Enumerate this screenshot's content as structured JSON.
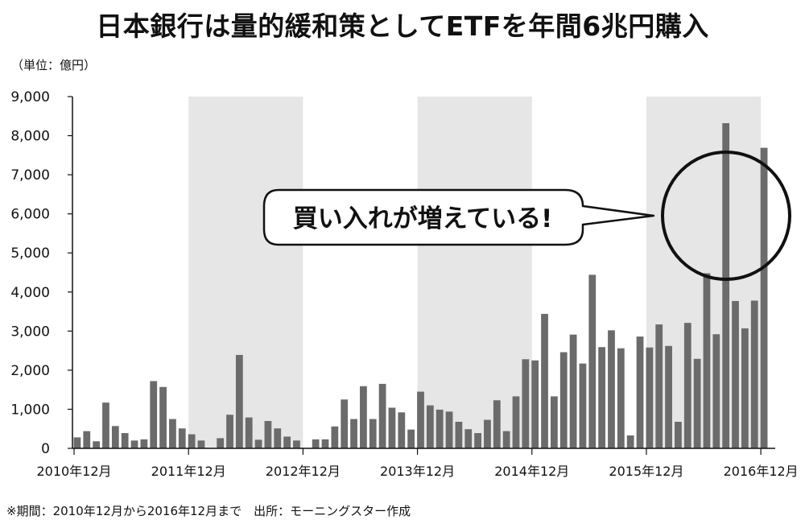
{
  "title": "日本銀行は量的緩和策としてETFを年間6兆円購入",
  "unit_label": "（単位：億円）",
  "footnote": "※期間：2010年12月から2016年12月まで　出所：モーニングスター作成",
  "callout": "買い入れが増えている!",
  "colors": {
    "bar": "#6b6b6b",
    "shade": "#e6e6e6",
    "axis": "#111111"
  },
  "chart_data": {
    "type": "bar",
    "ylim": [
      0,
      9000
    ],
    "yticks": [
      "0",
      "1,000",
      "2,000",
      "3,000",
      "4,000",
      "5,000",
      "6,000",
      "7,000",
      "8,000",
      "9,000"
    ],
    "xlabels": [
      "2010年12月",
      "2011年12月",
      "2012年12月",
      "2013年12月",
      "2014年12月",
      "2015年12月",
      "2016年12月"
    ],
    "grid": false,
    "shaded_years": [
      2012,
      2014,
      2016
    ],
    "values": [
      280,
      440,
      180,
      1170,
      570,
      390,
      200,
      230,
      1720,
      1570,
      750,
      510,
      360,
      200,
      0,
      260,
      860,
      2390,
      790,
      220,
      700,
      510,
      300,
      200,
      0,
      230,
      230,
      560,
      1250,
      750,
      1590,
      750,
      1650,
      1040,
      920,
      480,
      1450,
      1100,
      990,
      940,
      680,
      490,
      390,
      730,
      1230,
      440,
      1330,
      2280,
      2250,
      3440,
      1330,
      2460,
      2910,
      2170,
      4440,
      2590,
      3020,
      2560,
      330,
      2860,
      2580,
      3170,
      2620,
      680,
      3210,
      2290,
      4480,
      2920,
      8320,
      3770,
      3070,
      3780,
      7690
    ]
  }
}
